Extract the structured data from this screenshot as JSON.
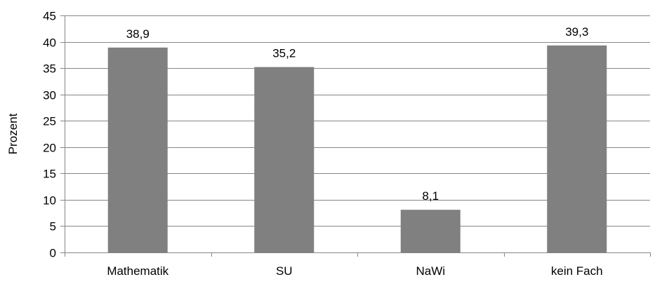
{
  "chart_data": {
    "type": "bar",
    "categories": [
      "Mathematik",
      "SU",
      "NaWi",
      "kein Fach"
    ],
    "values": [
      38.9,
      35.2,
      8.1,
      39.3
    ],
    "data_labels": [
      "38,9",
      "35,2",
      "8,1",
      "39,3"
    ],
    "title": "",
    "xlabel": "",
    "ylabel": "Prozent",
    "ylim": [
      0,
      45
    ],
    "yticks": [
      0,
      5,
      10,
      15,
      20,
      25,
      30,
      35,
      40,
      45
    ],
    "grid": true,
    "legend": "none",
    "bar_color": "#808080",
    "grid_color": "#868686"
  }
}
